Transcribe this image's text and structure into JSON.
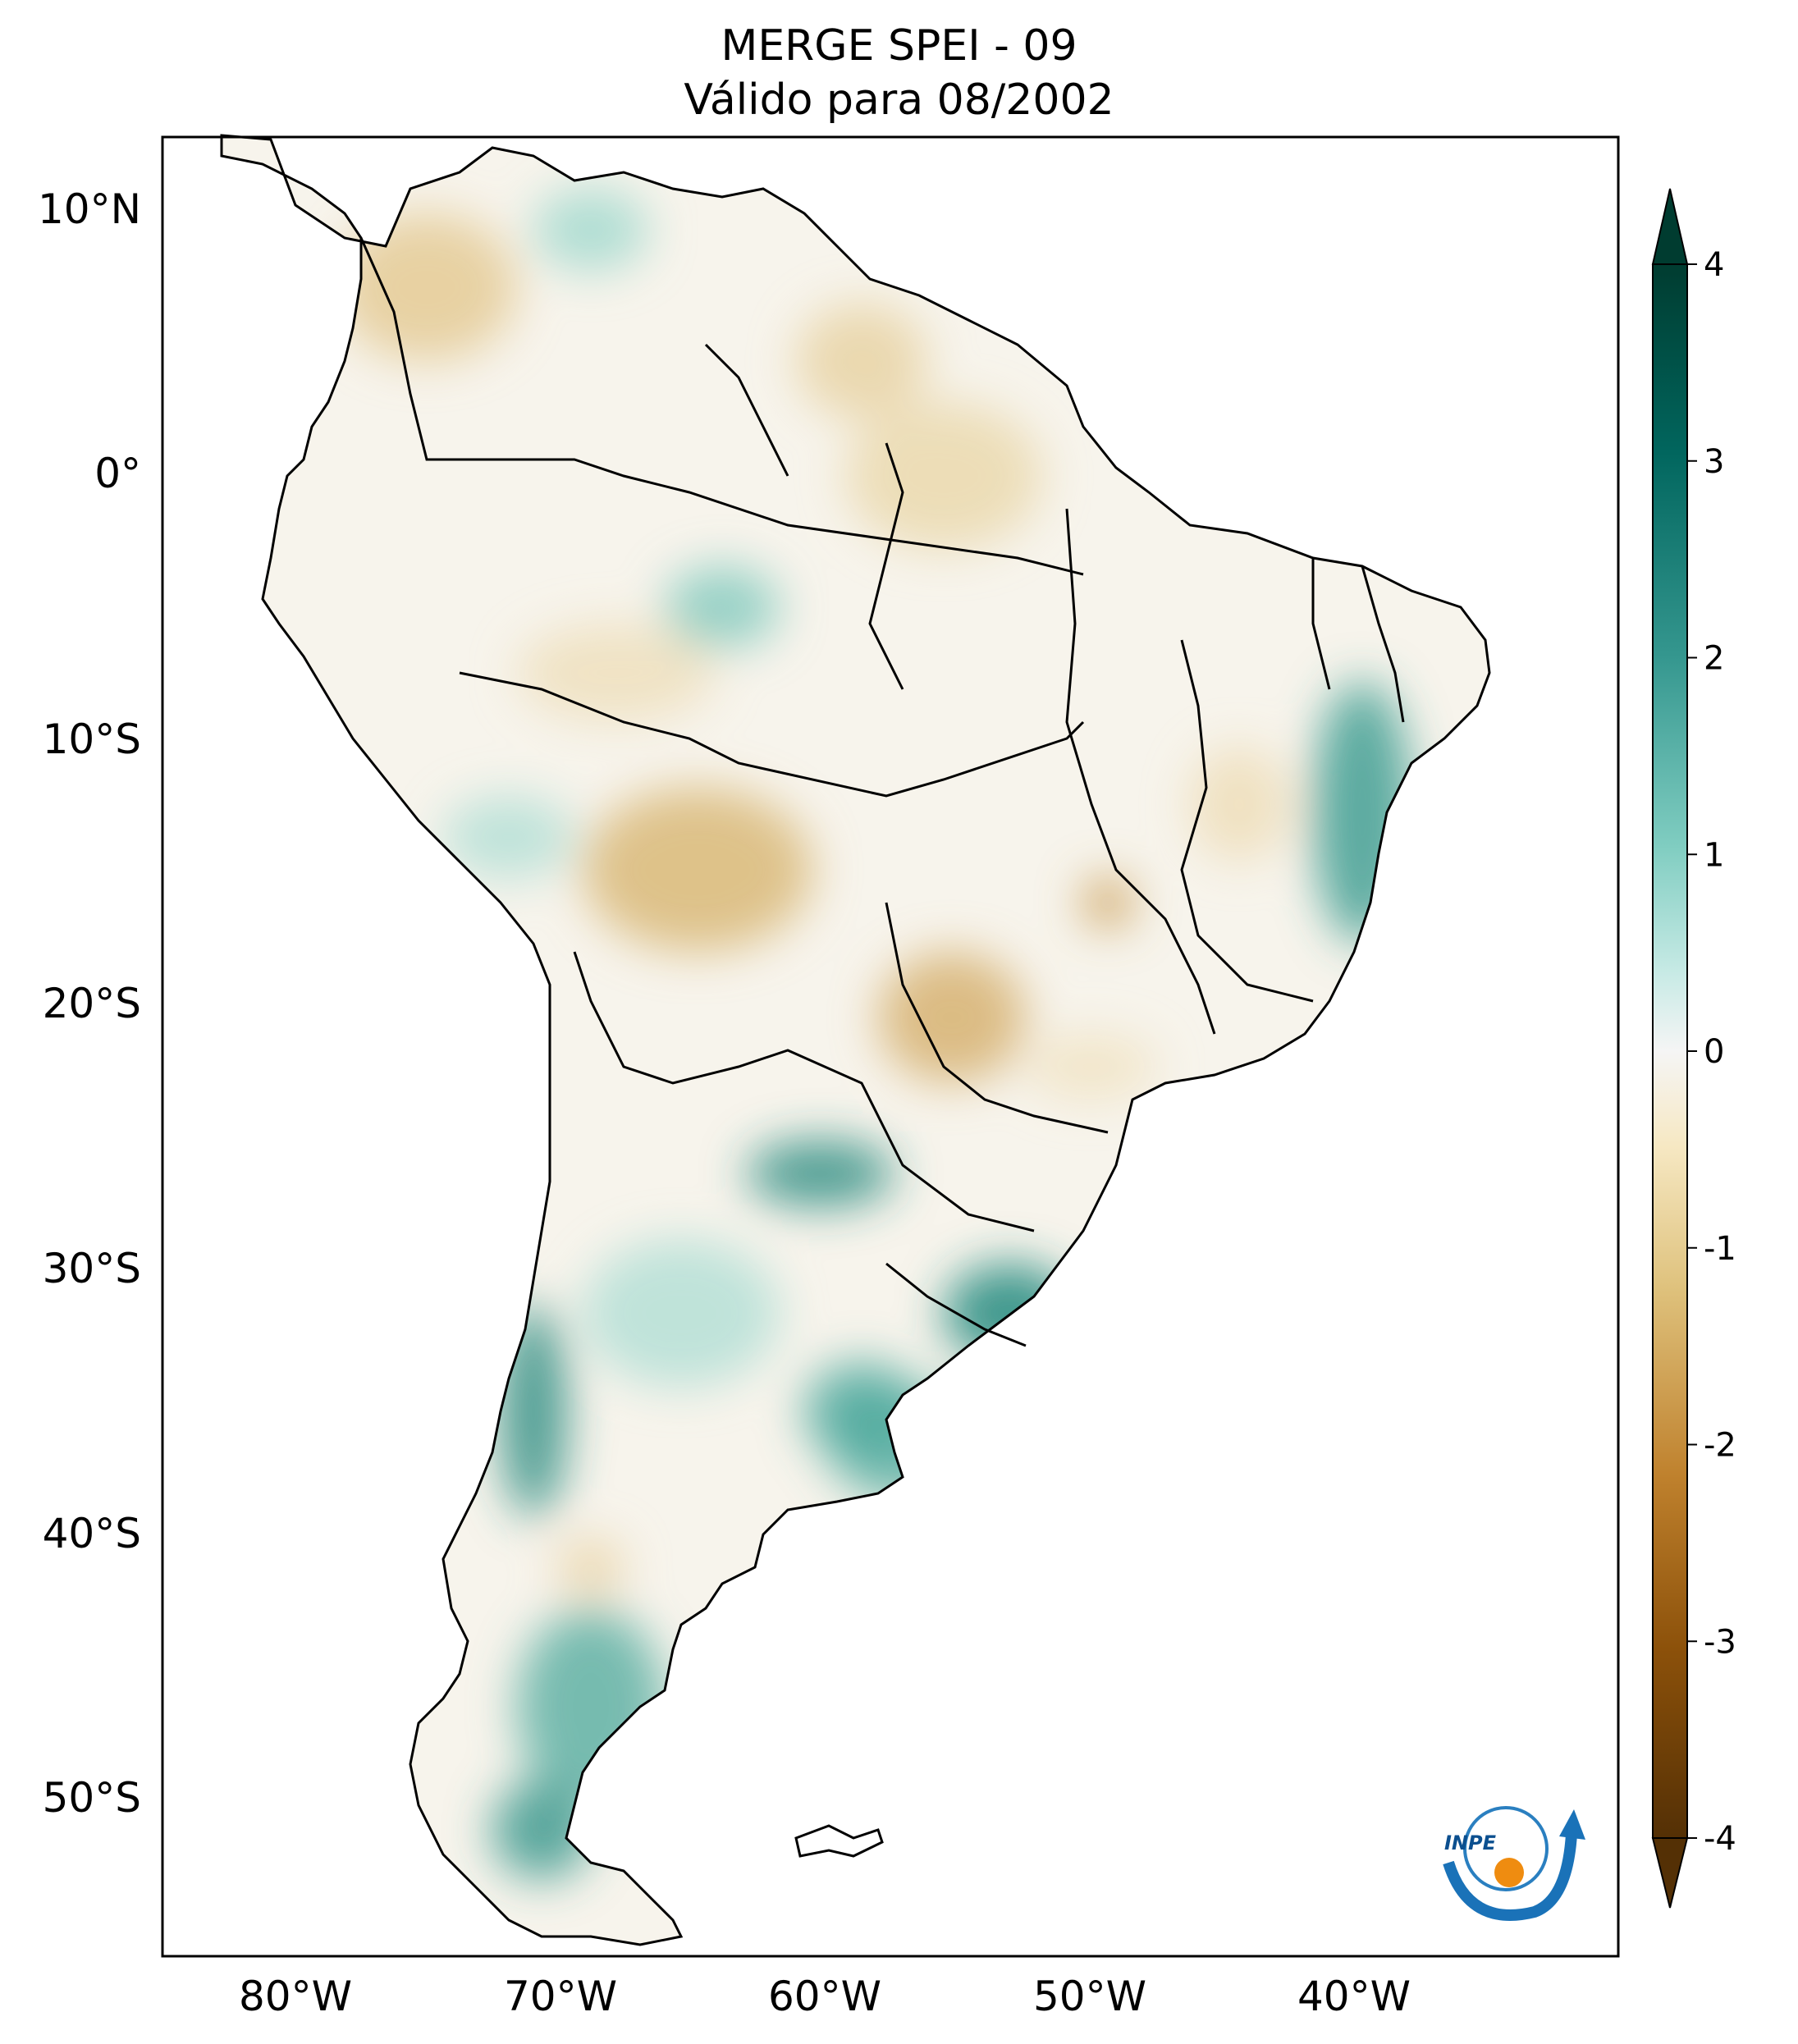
{
  "title": {
    "line1": "MERGE   SPEI - 09",
    "line2": "Válido para 08/2002"
  },
  "map": {
    "region": "South America",
    "variable": "SPEI - 09",
    "lon_ticks": [
      "80°W",
      "70°W",
      "60°W",
      "50°W",
      "40°W"
    ],
    "lat_ticks": [
      "10°N",
      "0°",
      "10°S",
      "20°S",
      "30°S",
      "40°S",
      "50°S"
    ]
  },
  "colorbar": {
    "min": -4,
    "max": 4,
    "tick_labels": [
      "4",
      "3",
      "2",
      "1",
      "0",
      "-1",
      "-2",
      "-3",
      "-4"
    ],
    "colors": [
      "#003c30",
      "#01665e",
      "#35978f",
      "#80cdc1",
      "#c7eae5",
      "#f5f5f5",
      "#f6e8c3",
      "#dfc27d",
      "#bf812d",
      "#8c510a",
      "#543005"
    ]
  },
  "logo": {
    "text": "INPE"
  }
}
